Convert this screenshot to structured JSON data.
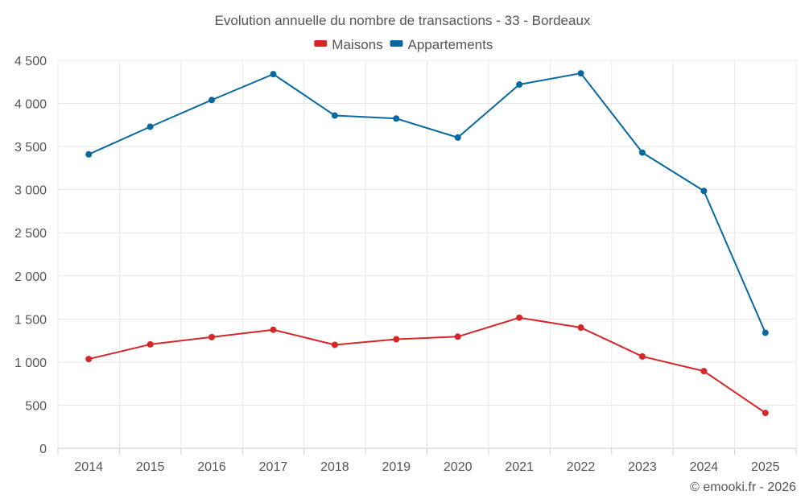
{
  "chart_data": {
    "type": "line",
    "title": "Evolution annuelle du nombre de transactions - 33 - Bordeaux",
    "categories": [
      "2014",
      "2015",
      "2016",
      "2017",
      "2018",
      "2019",
      "2020",
      "2021",
      "2022",
      "2023",
      "2024",
      "2025"
    ],
    "series": [
      {
        "name": "Maisons",
        "color": "#d62728",
        "values": [
          1035,
          1205,
          1290,
          1375,
          1200,
          1265,
          1295,
          1515,
          1400,
          1065,
          895,
          410
        ]
      },
      {
        "name": "Appartements",
        "color": "#0868a0",
        "values": [
          3410,
          3730,
          4040,
          4340,
          3860,
          3825,
          3605,
          4220,
          4350,
          3430,
          2985,
          1340
        ]
      }
    ],
    "ylim": [
      0,
      4500
    ],
    "yticks": [
      0,
      500,
      1000,
      1500,
      2000,
      2500,
      3000,
      3500,
      4000,
      4500
    ],
    "ytick_labels": [
      "0",
      "500",
      "1 000",
      "1 500",
      "2 000",
      "2 500",
      "3 000",
      "3 500",
      "4 000",
      "4 500"
    ],
    "xlabel": "",
    "ylabel": "",
    "grid": true,
    "legend_position": "top-center"
  },
  "credit": "© emooki.fr - 2026"
}
